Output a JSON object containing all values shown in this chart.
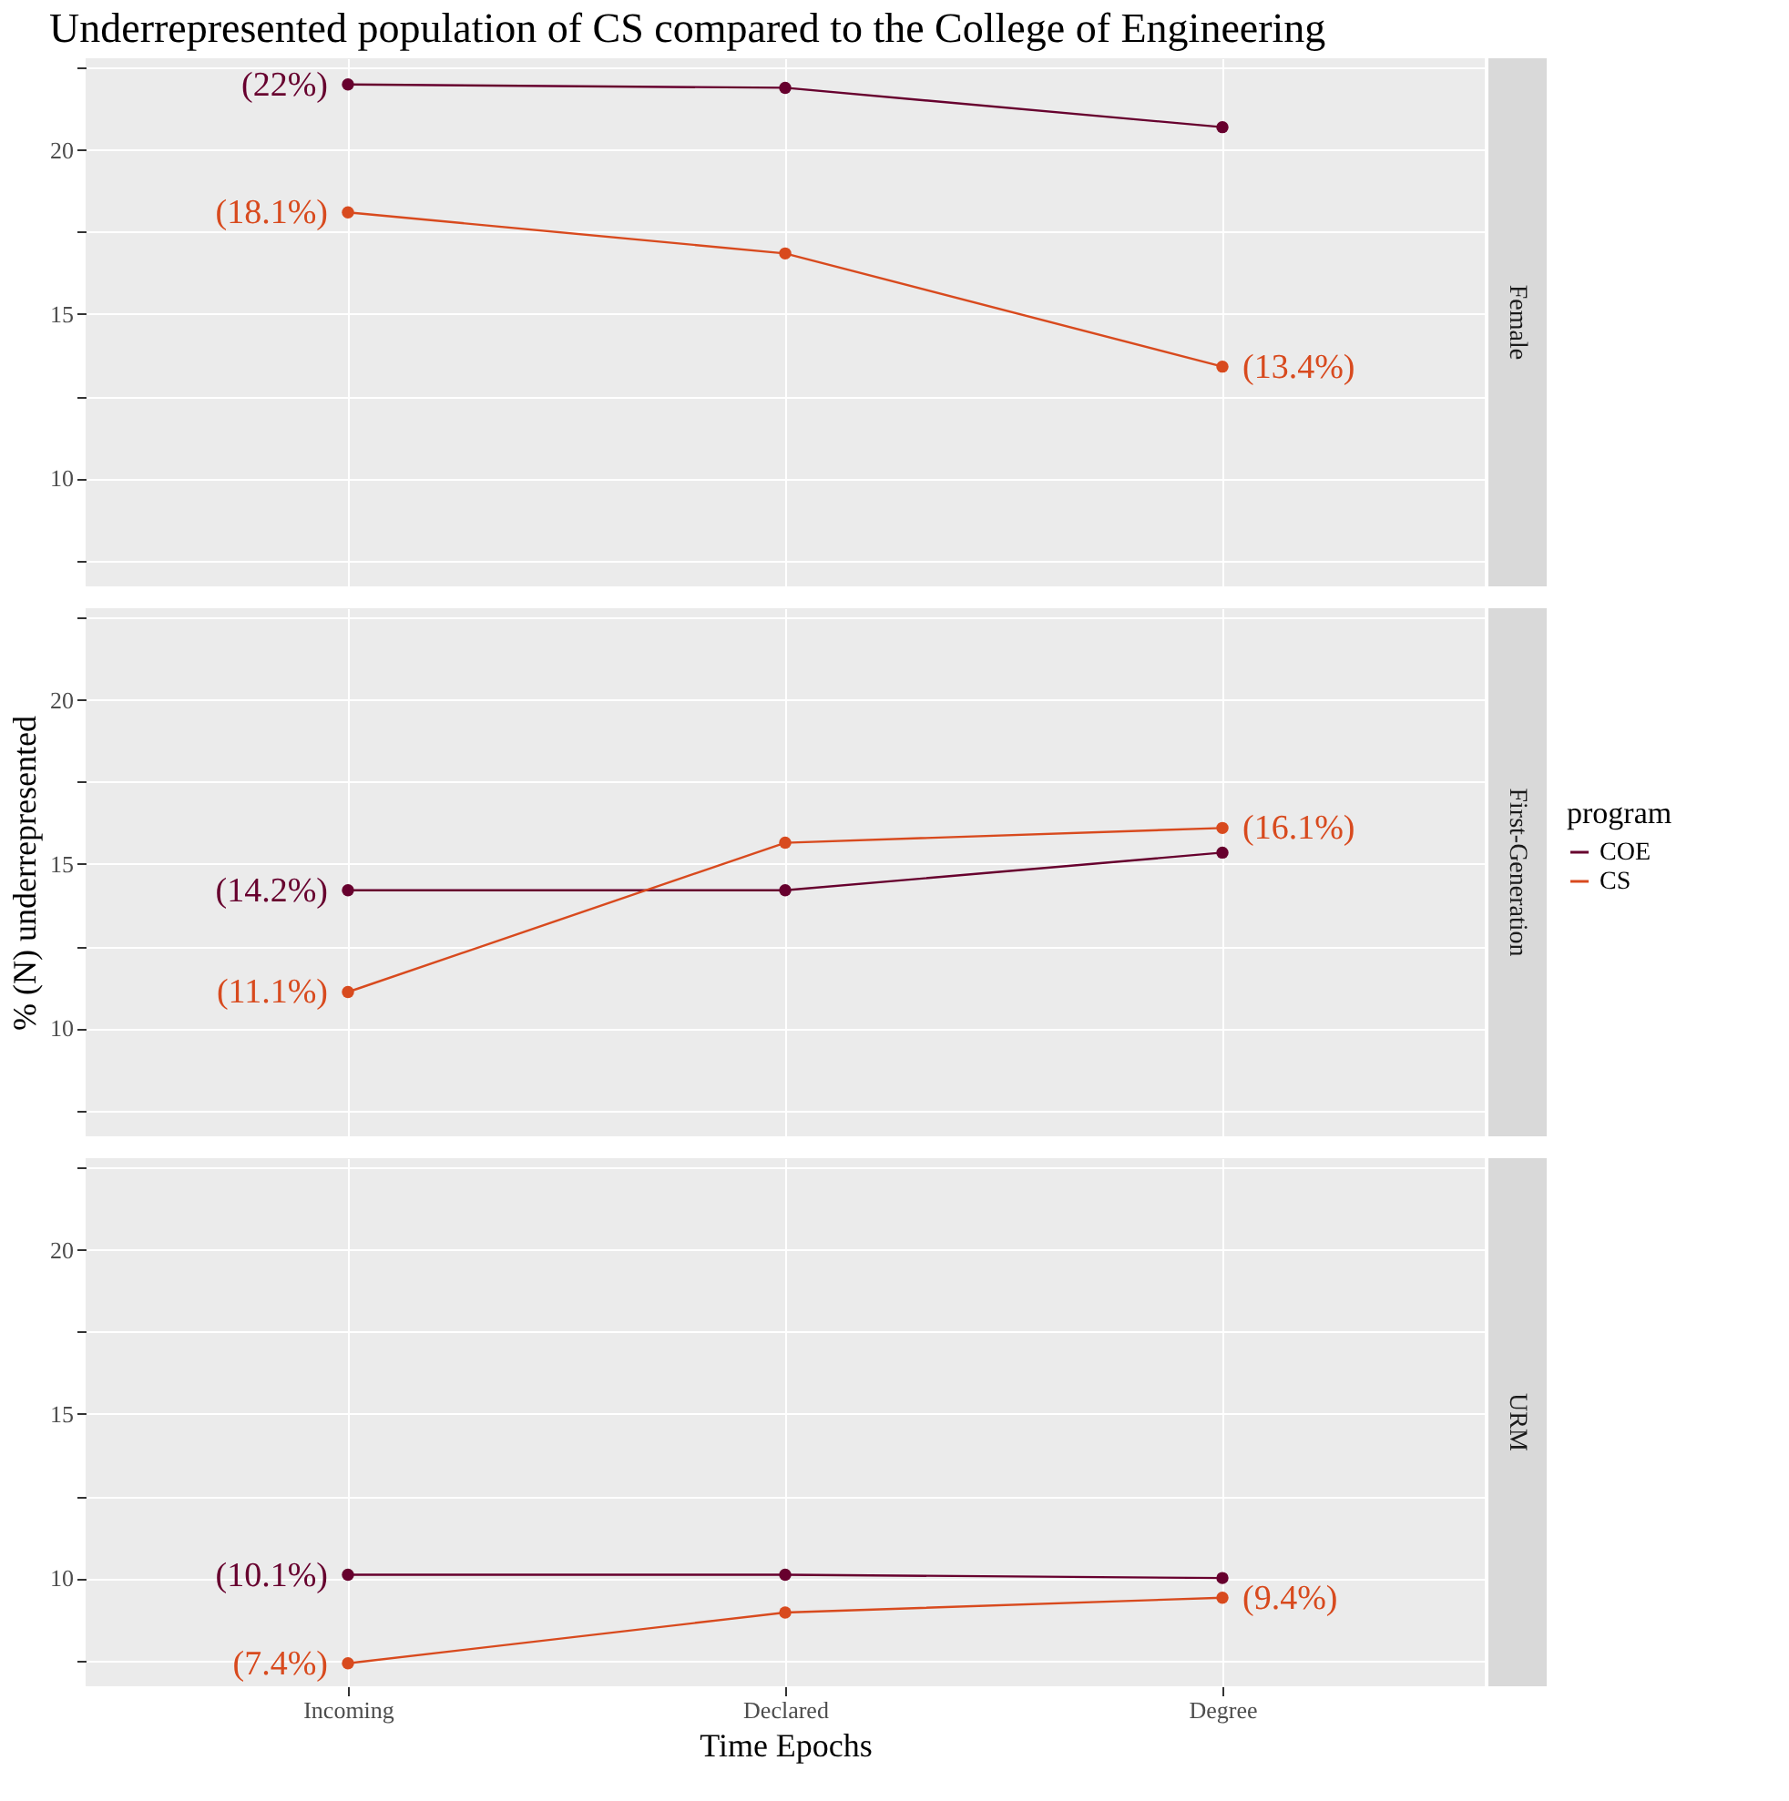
{
  "chart_data": [
    {
      "type": "line",
      "title": "Underrepresented population of CS compared to the College of Engineering",
      "y2label": "Female",
      "legend_title": "program",
      "legend": "right",
      "categories": [
        "Incoming",
        "Declared",
        "Degree"
      ],
      "ylim": [
        6.7,
        22.8
      ],
      "yticks": [
        {
          "value": 7.5,
          "label": null
        },
        10,
        {
          "value": 12.5,
          "label": null
        },
        15,
        {
          "value": 17.5,
          "label": null
        },
        20,
        {
          "value": 22.5,
          "label": null
        }
      ],
      "tick_labels": "y",
      "grid": true,
      "marker": "circle",
      "line_style": "solid",
      "series": [
        {
          "name": "COE",
          "color": "#67002e",
          "values": [
            22.0,
            21.9,
            20.7
          ],
          "value_labels": [
            "(22%)",
            null,
            null
          ]
        },
        {
          "name": "CS",
          "color": "#d84a1e",
          "values": [
            18.1,
            16.85,
            13.4
          ],
          "value_labels": [
            "(18.1%)",
            null,
            "(13.4%)"
          ]
        }
      ]
    },
    {
      "type": "line",
      "ylabel": "% (N) underrepresented",
      "y2label": "First-Generation",
      "categories": [
        "Incoming",
        "Declared",
        "Degree"
      ],
      "ylim": [
        6.7,
        22.8
      ],
      "yticks": [
        {
          "value": 7.5,
          "label": null
        },
        10,
        {
          "value": 12.5,
          "label": null
        },
        15,
        {
          "value": 17.5,
          "label": null
        },
        20,
        {
          "value": 22.5,
          "label": null
        }
      ],
      "tick_labels": "y",
      "grid": true,
      "marker": "circle",
      "line_style": "solid",
      "series": [
        {
          "name": "COE",
          "color": "#67002e",
          "values": [
            14.2,
            14.2,
            15.35
          ],
          "value_labels": [
            "(14.2%)",
            null,
            null
          ]
        },
        {
          "name": "CS",
          "color": "#d84a1e",
          "values": [
            11.1,
            15.65,
            16.1
          ],
          "value_labels": [
            "(11.1%)",
            null,
            "(16.1%)"
          ]
        }
      ]
    },
    {
      "type": "line",
      "xlabel": "Time Epochs",
      "y2label": "URM",
      "categories": [
        "Incoming",
        "Declared",
        "Degree"
      ],
      "ylim": [
        6.7,
        22.8
      ],
      "yticks": [
        {
          "value": 7.5,
          "label": null
        },
        10,
        {
          "value": 12.5,
          "label": null
        },
        15,
        {
          "value": 17.5,
          "label": null
        },
        20,
        {
          "value": 22.5,
          "label": null
        }
      ],
      "grid": true,
      "marker": "circle",
      "line_style": "solid",
      "series": [
        {
          "name": "COE",
          "color": "#67002e",
          "values": [
            10.1,
            10.1,
            10.0
          ],
          "value_labels": [
            "(10.1%)",
            null,
            null
          ]
        },
        {
          "name": "CS",
          "color": "#d84a1e",
          "values": [
            7.4,
            8.95,
            9.4
          ],
          "value_labels": [
            "(7.4%)",
            null,
            "(9.4%)"
          ]
        }
      ]
    }
  ]
}
